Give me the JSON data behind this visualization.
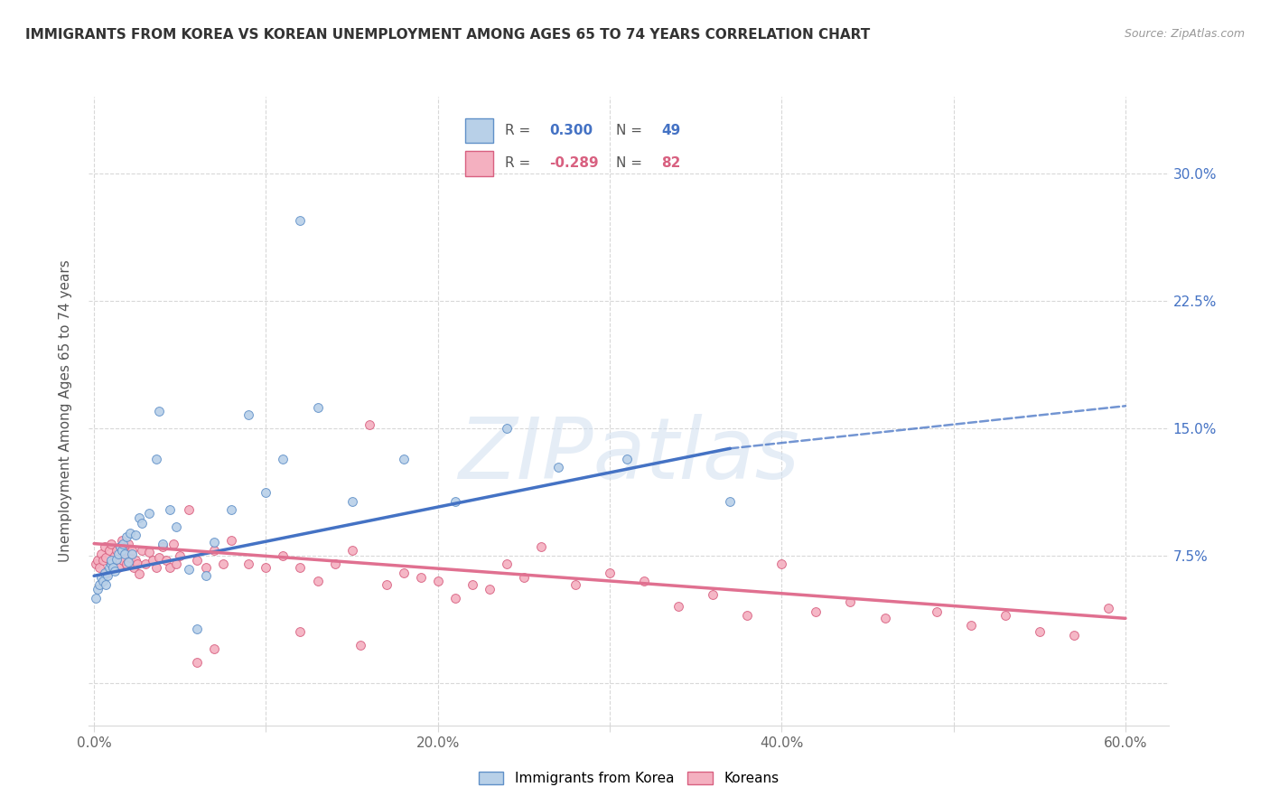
{
  "title": "IMMIGRANTS FROM KOREA VS KOREAN UNEMPLOYMENT AMONG AGES 65 TO 74 YEARS CORRELATION CHART",
  "source": "Source: ZipAtlas.com",
  "ylabel": "Unemployment Among Ages 65 to 74 years",
  "xlim": [
    -0.003,
    0.625
  ],
  "ylim": [
    -0.025,
    0.345
  ],
  "xtick_positions": [
    0.0,
    0.1,
    0.2,
    0.3,
    0.4,
    0.5,
    0.6
  ],
  "xtick_labels": [
    "0.0%",
    "",
    "20.0%",
    "",
    "40.0%",
    "",
    "60.0%"
  ],
  "ytick_positions": [
    0.0,
    0.075,
    0.15,
    0.225,
    0.3
  ],
  "ytick_labels_right": [
    "",
    "7.5%",
    "15.0%",
    "22.5%",
    "30.0%"
  ],
  "blue_R": "0.300",
  "blue_N": "49",
  "pink_R": "-0.289",
  "pink_N": "82",
  "blue_fill": "#b8d0e8",
  "blue_edge": "#6090c8",
  "pink_fill": "#f4b0c0",
  "pink_edge": "#d86080",
  "blue_line": "#4472c4",
  "pink_line": "#e07090",
  "watermark": "ZIPatlas",
  "watermark_color": "#d0dff0",
  "grid_color": "#d8d8d8",
  "blue_x": [
    0.001,
    0.002,
    0.003,
    0.004,
    0.005,
    0.006,
    0.007,
    0.008,
    0.009,
    0.01,
    0.01,
    0.011,
    0.012,
    0.013,
    0.014,
    0.015,
    0.016,
    0.017,
    0.018,
    0.019,
    0.02,
    0.021,
    0.022,
    0.024,
    0.026,
    0.028,
    0.032,
    0.036,
    0.04,
    0.044,
    0.048,
    0.055,
    0.06,
    0.065,
    0.07,
    0.08,
    0.09,
    0.1,
    0.11,
    0.12,
    0.13,
    0.15,
    0.18,
    0.21,
    0.24,
    0.27,
    0.31,
    0.37,
    0.038
  ],
  "blue_y": [
    0.05,
    0.055,
    0.058,
    0.062,
    0.06,
    0.065,
    0.058,
    0.063,
    0.068,
    0.07,
    0.072,
    0.068,
    0.066,
    0.073,
    0.076,
    0.08,
    0.078,
    0.082,
    0.076,
    0.086,
    0.071,
    0.088,
    0.076,
    0.087,
    0.097,
    0.094,
    0.1,
    0.132,
    0.082,
    0.102,
    0.092,
    0.067,
    0.032,
    0.063,
    0.083,
    0.102,
    0.158,
    0.112,
    0.132,
    0.272,
    0.162,
    0.107,
    0.132,
    0.107,
    0.15,
    0.127,
    0.132,
    0.107,
    0.16
  ],
  "pink_x": [
    0.001,
    0.002,
    0.003,
    0.004,
    0.005,
    0.006,
    0.007,
    0.008,
    0.009,
    0.01,
    0.011,
    0.012,
    0.013,
    0.014,
    0.015,
    0.016,
    0.017,
    0.018,
    0.019,
    0.02,
    0.021,
    0.022,
    0.023,
    0.024,
    0.025,
    0.026,
    0.028,
    0.03,
    0.032,
    0.034,
    0.036,
    0.038,
    0.04,
    0.042,
    0.044,
    0.046,
    0.048,
    0.05,
    0.055,
    0.06,
    0.065,
    0.07,
    0.075,
    0.08,
    0.09,
    0.1,
    0.11,
    0.12,
    0.13,
    0.14,
    0.15,
    0.16,
    0.17,
    0.18,
    0.19,
    0.2,
    0.21,
    0.22,
    0.23,
    0.24,
    0.25,
    0.26,
    0.28,
    0.3,
    0.32,
    0.34,
    0.36,
    0.38,
    0.4,
    0.42,
    0.44,
    0.46,
    0.49,
    0.51,
    0.53,
    0.55,
    0.57,
    0.59,
    0.06,
    0.07,
    0.12,
    0.155
  ],
  "pink_y": [
    0.07,
    0.072,
    0.068,
    0.076,
    0.072,
    0.08,
    0.074,
    0.065,
    0.078,
    0.082,
    0.07,
    0.075,
    0.078,
    0.068,
    0.08,
    0.084,
    0.072,
    0.078,
    0.07,
    0.082,
    0.074,
    0.078,
    0.068,
    0.072,
    0.07,
    0.064,
    0.078,
    0.07,
    0.077,
    0.072,
    0.068,
    0.074,
    0.08,
    0.072,
    0.068,
    0.082,
    0.07,
    0.075,
    0.102,
    0.072,
    0.068,
    0.078,
    0.07,
    0.084,
    0.07,
    0.068,
    0.075,
    0.068,
    0.06,
    0.07,
    0.078,
    0.152,
    0.058,
    0.065,
    0.062,
    0.06,
    0.05,
    0.058,
    0.055,
    0.07,
    0.062,
    0.08,
    0.058,
    0.065,
    0.06,
    0.045,
    0.052,
    0.04,
    0.07,
    0.042,
    0.048,
    0.038,
    0.042,
    0.034,
    0.04,
    0.03,
    0.028,
    0.044,
    0.012,
    0.02,
    0.03,
    0.022
  ]
}
